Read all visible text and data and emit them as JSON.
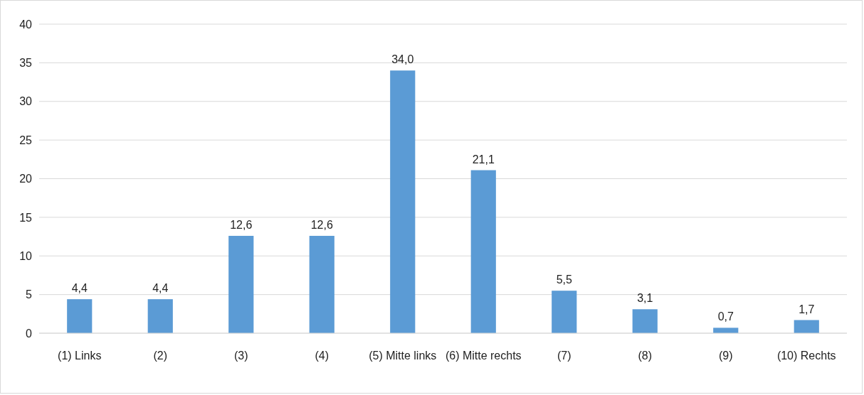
{
  "chart_data": {
    "type": "bar",
    "categories": [
      "(1) Links",
      "(2)",
      "(3)",
      "(4)",
      "(5) Mitte links",
      "(6) Mitte rechts",
      "(7)",
      "(8)",
      "(9)",
      "(10) Rechts"
    ],
    "values": [
      4.4,
      4.4,
      12.6,
      12.6,
      34.0,
      21.1,
      5.5,
      3.1,
      0.7,
      1.7
    ],
    "value_labels": [
      "4,4",
      "4,4",
      "12,6",
      "12,6",
      "34,0",
      "21,1",
      "5,5",
      "3,1",
      "0,7",
      "1,7"
    ],
    "color": "#5b9bd5",
    "ylim": [
      0,
      40
    ],
    "yticks": [
      0,
      5,
      10,
      15,
      20,
      25,
      30,
      35,
      40
    ],
    "grid": "y"
  }
}
